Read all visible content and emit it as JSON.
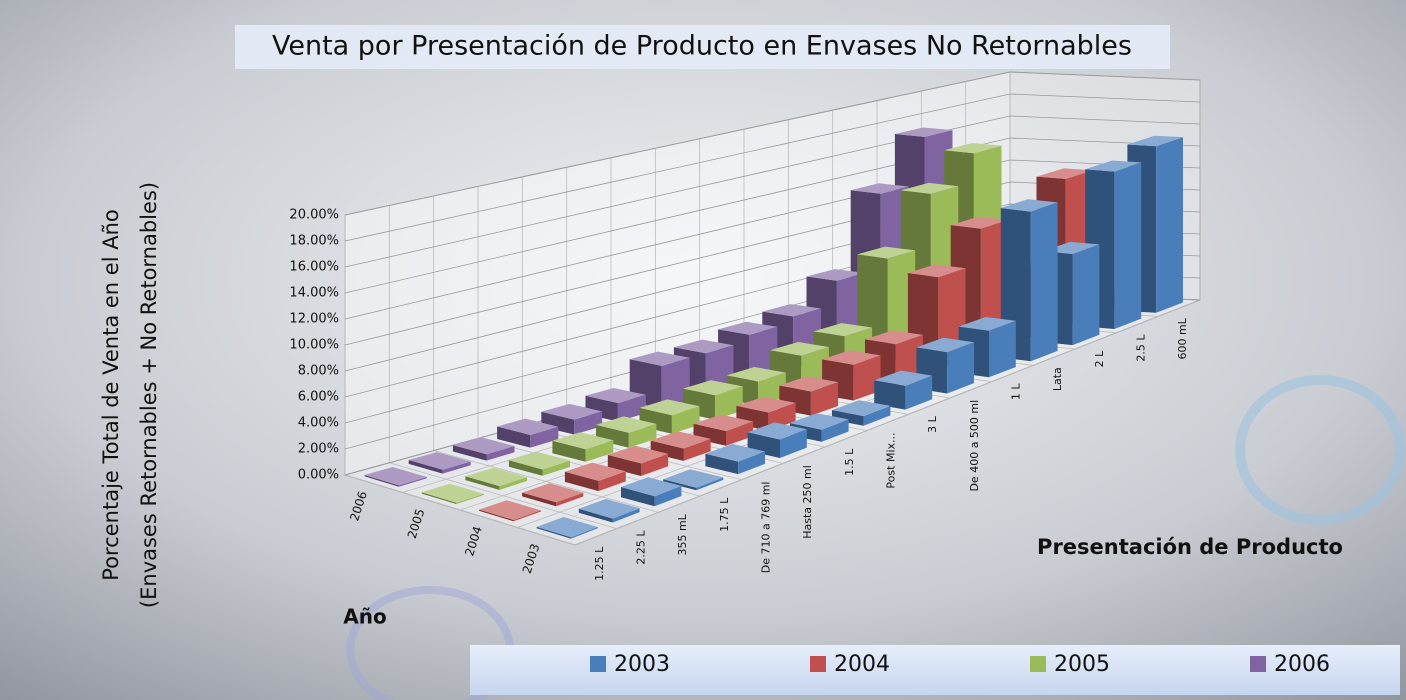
{
  "chart_data": {
    "type": "bar3d",
    "title": "Venta por Presentación de Producto en Envases No Retornables",
    "y_label_lines": [
      "Porcentaje Total de Venta en el Año",
      "(Envases Retornables + No Retornables)"
    ],
    "x_label": "Presentación de Producto",
    "z_label": "Año",
    "categories": [
      "1.25 L",
      "2.25 L",
      "355 mL",
      "1.75 L",
      "De 710 a 769 ml",
      "Hasta 250 ml",
      "1.5 L",
      "Post Mix...",
      "3 L",
      "De 400 a 500 ml",
      "1 L",
      "Lata",
      "2 L",
      "2.5 L",
      "600 mL"
    ],
    "series": [
      {
        "name": "2003",
        "color": "#4a7ebb",
        "values": [
          0.1,
          0.3,
          0.8,
          0.2,
          1.0,
          1.5,
          1.0,
          0.8,
          2.0,
          3.5,
          4.0,
          13.0,
          8.0,
          14.0,
          15.0
        ]
      },
      {
        "name": "2004",
        "color": "#c0504d",
        "values": [
          0.1,
          0.3,
          0.8,
          1.0,
          1.0,
          1.2,
          1.5,
          2.0,
          3.0,
          3.5,
          8.0,
          11.0,
          6.0,
          13.0,
          1.0
        ]
      },
      {
        "name": "2005",
        "color": "#9bbb59",
        "values": [
          0.1,
          0.3,
          0.5,
          1.0,
          1.2,
          1.5,
          2.0,
          2.0,
          3.0,
          3.5,
          9.0,
          13.5,
          16.0,
          0.1,
          0.1
        ]
      },
      {
        "name": "2006",
        "color": "#8064a2",
        "values": [
          0.1,
          0.3,
          0.5,
          1.0,
          1.2,
          1.5,
          3.5,
          3.5,
          4.0,
          4.5,
          6.5,
          13.0,
          17.0,
          0.1,
          0.1
        ]
      }
    ],
    "ylim": [
      0,
      20
    ],
    "yticks": [
      {
        "value": 0,
        "label": "0.00%"
      },
      {
        "value": 2,
        "label": "2.00%"
      },
      {
        "value": 4,
        "label": "4.00%"
      },
      {
        "value": 6,
        "label": "6.00%"
      },
      {
        "value": 8,
        "label": "8.00%"
      },
      {
        "value": 10,
        "label": "10.00%"
      },
      {
        "value": 12,
        "label": "12.00%"
      },
      {
        "value": 14,
        "label": "14.00%"
      },
      {
        "value": 16,
        "label": "16.00%"
      },
      {
        "value": 18,
        "label": "18.00%"
      },
      {
        "value": 20,
        "label": "20.00%"
      }
    ],
    "grid": true
  }
}
